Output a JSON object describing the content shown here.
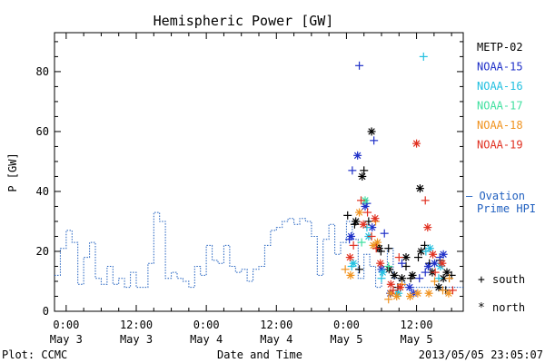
{
  "chart_data": {
    "type": "scatter",
    "title": "Hemispheric Power [GW]",
    "xlabel": "Date and Time",
    "ylabel": "P [GW]",
    "x_unit": "hours from 2013/05/03 00:00",
    "xlim": [
      -2,
      68
    ],
    "ylim": [
      0,
      93
    ],
    "y_ticks": [
      0,
      20,
      40,
      60,
      80
    ],
    "x_ticks": [
      {
        "x": 0,
        "time": "0:00",
        "date": "May 3"
      },
      {
        "x": 12,
        "time": "12:00",
        "date": "May 3"
      },
      {
        "x": 24,
        "time": "0:00",
        "date": "May 4"
      },
      {
        "x": 36,
        "time": "12:00",
        "date": "May 4"
      },
      {
        "x": 48,
        "time": "0:00",
        "date": "May 5"
      },
      {
        "x": 60,
        "time": "12:00",
        "date": "May 5"
      }
    ],
    "footer_left": "Plot: CCMC",
    "footer_right": "2013/05/05 23:05:07",
    "ovation": {
      "name": "Ovation Prime HPI",
      "label_line1": "– Ovation",
      "label_line2": "Prime HPI",
      "color": "#1f5fbf",
      "x": [
        -2,
        -1,
        -1,
        0,
        0,
        1,
        1,
        2,
        2,
        3,
        3,
        4,
        4,
        5,
        5,
        6,
        6,
        7,
        7,
        8,
        8,
        9,
        9,
        10,
        10,
        11,
        11,
        12,
        12,
        13,
        13,
        14,
        14,
        15,
        15,
        16,
        16,
        17,
        17,
        18,
        18,
        19,
        19,
        20,
        20,
        21,
        21,
        22,
        22,
        23,
        23,
        24,
        24,
        25,
        25,
        26,
        26,
        27,
        27,
        28,
        28,
        29,
        29,
        30,
        30,
        31,
        31,
        32,
        32,
        33,
        33,
        34,
        34,
        35,
        35,
        36,
        36,
        37,
        37,
        38,
        38,
        39,
        39,
        40,
        40,
        41,
        41,
        42,
        42,
        43,
        43,
        44,
        44,
        45,
        45,
        46,
        46,
        47,
        47,
        48,
        48,
        49,
        49,
        50,
        50,
        51,
        51,
        52,
        52,
        53,
        53,
        54,
        54,
        55,
        55,
        56,
        56,
        57,
        57,
        58,
        58,
        59,
        59,
        60,
        60,
        61,
        61,
        62,
        62,
        63,
        63,
        64,
        64,
        65,
        65,
        66,
        66,
        67,
        67,
        68
      ],
      "y": [
        12,
        12,
        21,
        21,
        27,
        27,
        23,
        23,
        9,
        9,
        18,
        18,
        23,
        23,
        11,
        11,
        9,
        9,
        15,
        15,
        9,
        9,
        11,
        11,
        8,
        8,
        13,
        13,
        8,
        8,
        8,
        8,
        16,
        16,
        33,
        33,
        30,
        30,
        11,
        11,
        13,
        13,
        11,
        11,
        10,
        10,
        8,
        8,
        15,
        15,
        12,
        12,
        22,
        22,
        17,
        17,
        16,
        16,
        22,
        22,
        15,
        15,
        13,
        13,
        14,
        14,
        10,
        10,
        14,
        14,
        15,
        15,
        22,
        22,
        27,
        27,
        28,
        28,
        30,
        30,
        31,
        31,
        29,
        29,
        31,
        31,
        30,
        30,
        25,
        25,
        12,
        12,
        24,
        24,
        29,
        29,
        19,
        19,
        23,
        23,
        30,
        30,
        24,
        24,
        11,
        11,
        19,
        19,
        15,
        15,
        8,
        8,
        15,
        15,
        21,
        21,
        11,
        11,
        10,
        10,
        8,
        8,
        8,
        8,
        8,
        8,
        8,
        8,
        8,
        8,
        8,
        8,
        8,
        8,
        8,
        8,
        8,
        8,
        8,
        8
      ]
    },
    "series": [
      {
        "name": "METP-02",
        "color": "#000000",
        "south": [
          [
            48.2,
            32
          ],
          [
            49.4,
            29
          ],
          [
            50.2,
            14
          ],
          [
            51,
            47
          ],
          [
            51.8,
            30
          ],
          [
            53.2,
            22
          ],
          [
            53.9,
            20
          ],
          [
            55.2,
            21
          ],
          [
            56.8,
            8
          ],
          [
            58.2,
            15
          ],
          [
            59,
            11
          ],
          [
            60.3,
            18
          ],
          [
            61.4,
            22
          ],
          [
            62.2,
            16
          ],
          [
            64,
            17
          ],
          [
            65,
            7
          ],
          [
            66,
            12
          ]
        ],
        "north": [
          [
            49.6,
            30
          ],
          [
            50.7,
            45
          ],
          [
            52.3,
            60
          ],
          [
            53.6,
            21
          ],
          [
            55.3,
            14
          ],
          [
            56.2,
            12
          ],
          [
            57.5,
            11
          ],
          [
            58.2,
            18
          ],
          [
            59.3,
            12
          ],
          [
            60.6,
            41
          ],
          [
            60.8,
            20
          ],
          [
            62.7,
            13
          ],
          [
            63.8,
            8
          ],
          [
            64.6,
            11
          ],
          [
            65.2,
            13
          ]
        ]
      },
      {
        "name": "NOAA-15",
        "color": "#1f30c8",
        "south": [
          [
            48.5,
            24
          ],
          [
            49,
            47
          ],
          [
            50.2,
            82
          ],
          [
            51.5,
            36
          ],
          [
            52.7,
            57
          ],
          [
            54.5,
            26
          ],
          [
            57.5,
            16
          ],
          [
            60.5,
            11
          ],
          [
            61.5,
            13
          ],
          [
            64,
            18
          ]
        ],
        "north": [
          [
            48.8,
            25
          ],
          [
            49.9,
            52
          ],
          [
            51.2,
            35
          ],
          [
            52.4,
            28
          ],
          [
            54,
            14
          ],
          [
            55.5,
            6
          ],
          [
            58.8,
            8
          ],
          [
            59.5,
            6
          ],
          [
            62,
            15
          ],
          [
            63.1,
            16
          ],
          [
            64.6,
            19
          ]
        ]
      },
      {
        "name": "NOAA-16",
        "color": "#22c0e0",
        "south": [
          [
            48.9,
            15
          ],
          [
            51.5,
            28
          ],
          [
            54,
            11
          ],
          [
            56.5,
            6
          ],
          [
            61.2,
            85
          ],
          [
            61.6,
            20
          ],
          [
            63.8,
            11
          ]
        ],
        "north": [
          [
            49.2,
            16
          ],
          [
            51.8,
            25
          ],
          [
            54.2,
            13
          ],
          [
            56.9,
            6
          ],
          [
            62.3,
            21
          ],
          [
            64.1,
            15
          ]
        ]
      },
      {
        "name": "NOAA-17",
        "color": "#40e0a0",
        "south": [
          [
            50.6,
            23
          ],
          [
            55.2,
            15
          ]
        ],
        "north": [
          [
            51.2,
            37
          ]
        ]
      },
      {
        "name": "NOAA-18",
        "color": "#f0921e",
        "south": [
          [
            47.8,
            14
          ],
          [
            53,
            30
          ],
          [
            55.2,
            4
          ],
          [
            57.5,
            9
          ],
          [
            63.1,
            10
          ],
          [
            64.5,
            7
          ],
          [
            65.6,
            11
          ]
        ],
        "north": [
          [
            48.7,
            12
          ],
          [
            50.2,
            33
          ],
          [
            52.6,
            22
          ],
          [
            53.3,
            23
          ],
          [
            55.6,
            6
          ],
          [
            56.6,
            5
          ],
          [
            58.9,
            5
          ],
          [
            60.2,
            6
          ],
          [
            62.1,
            6
          ],
          [
            65.5,
            6
          ]
        ]
      },
      {
        "name": "NOAA-19",
        "color": "#e03020",
        "south": [
          [
            49.2,
            22
          ],
          [
            50.5,
            37
          ],
          [
            51.6,
            33
          ],
          [
            52.3,
            25
          ],
          [
            53.1,
            21
          ],
          [
            56,
            7
          ],
          [
            57,
            18
          ],
          [
            61.5,
            37
          ],
          [
            63.2,
            13
          ],
          [
            66.2,
            7
          ]
        ],
        "north": [
          [
            48.6,
            18
          ],
          [
            50.9,
            29
          ],
          [
            52.9,
            31
          ],
          [
            53.8,
            16
          ],
          [
            55.6,
            9
          ],
          [
            57.2,
            8
          ],
          [
            60,
            56
          ],
          [
            61.9,
            28
          ],
          [
            62.8,
            19
          ],
          [
            64.4,
            16
          ]
        ]
      }
    ],
    "marker_legend": {
      "south_symbol": "+",
      "south_label": "south",
      "north_symbol": "*",
      "north_label": "north"
    }
  }
}
